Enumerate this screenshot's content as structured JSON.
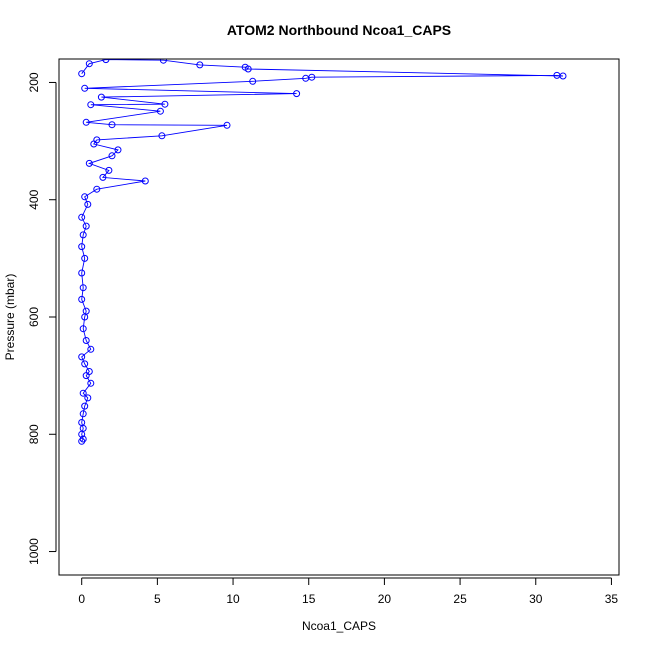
{
  "chart_data": {
    "type": "scatter",
    "title": "ATOM2 Northbound Ncoa1_CAPS",
    "xlabel": "Ncoa1_CAPS",
    "ylabel": "Pressure (mbar)",
    "xlim": [
      -1.5,
      35.5
    ],
    "ylim": [
      1040,
      160
    ],
    "y_reversed": true,
    "xticks": [
      0,
      5,
      10,
      15,
      20,
      25,
      30,
      35
    ],
    "yticks": [
      200,
      400,
      600,
      800,
      1000
    ],
    "grid": false,
    "legend": "none",
    "color": "#0000ff",
    "marker": "open-circle",
    "connected": true,
    "series": [
      {
        "points": [
          {
            "x": 0.0,
            "y": 812
          },
          {
            "x": 0.1,
            "y": 808
          },
          {
            "x": 0.0,
            "y": 800
          },
          {
            "x": 0.1,
            "y": 790
          },
          {
            "x": 0.0,
            "y": 780
          },
          {
            "x": 0.1,
            "y": 765
          },
          {
            "x": 0.2,
            "y": 752
          },
          {
            "x": 0.4,
            "y": 738
          },
          {
            "x": 0.1,
            "y": 730
          },
          {
            "x": 0.6,
            "y": 713
          },
          {
            "x": 0.3,
            "y": 700
          },
          {
            "x": 0.5,
            "y": 693
          },
          {
            "x": 0.2,
            "y": 680
          },
          {
            "x": 0.0,
            "y": 668
          },
          {
            "x": 0.6,
            "y": 655
          },
          {
            "x": 0.3,
            "y": 640
          },
          {
            "x": 0.1,
            "y": 620
          },
          {
            "x": 0.2,
            "y": 600
          },
          {
            "x": 0.3,
            "y": 590
          },
          {
            "x": 0.0,
            "y": 570
          },
          {
            "x": 0.1,
            "y": 550
          },
          {
            "x": 0.0,
            "y": 525
          },
          {
            "x": 0.2,
            "y": 500
          },
          {
            "x": 0.0,
            "y": 480
          },
          {
            "x": 0.1,
            "y": 460
          },
          {
            "x": 0.3,
            "y": 445
          },
          {
            "x": 0.0,
            "y": 430
          },
          {
            "x": 0.4,
            "y": 408
          },
          {
            "x": 0.2,
            "y": 395
          },
          {
            "x": 1.0,
            "y": 382
          },
          {
            "x": 4.2,
            "y": 368
          },
          {
            "x": 1.4,
            "y": 362
          },
          {
            "x": 1.8,
            "y": 350
          },
          {
            "x": 0.5,
            "y": 338
          },
          {
            "x": 2.0,
            "y": 325
          },
          {
            "x": 2.4,
            "y": 315
          },
          {
            "x": 0.8,
            "y": 305
          },
          {
            "x": 1.0,
            "y": 298
          },
          {
            "x": 5.3,
            "y": 291
          },
          {
            "x": 9.6,
            "y": 273
          },
          {
            "x": 2.0,
            "y": 272
          },
          {
            "x": 0.3,
            "y": 268
          },
          {
            "x": 5.2,
            "y": 249
          },
          {
            "x": 0.6,
            "y": 238
          },
          {
            "x": 5.5,
            "y": 237
          },
          {
            "x": 1.3,
            "y": 225
          },
          {
            "x": 14.2,
            "y": 219
          },
          {
            "x": 0.2,
            "y": 210
          },
          {
            "x": 11.3,
            "y": 198
          },
          {
            "x": 14.8,
            "y": 193
          },
          {
            "x": 15.2,
            "y": 191
          },
          {
            "x": 31.4,
            "y": 188
          },
          {
            "x": 31.8,
            "y": 189
          },
          {
            "x": 11.0,
            "y": 177
          },
          {
            "x": 10.8,
            "y": 174
          },
          {
            "x": 7.8,
            "y": 170
          },
          {
            "x": 5.4,
            "y": 162
          },
          {
            "x": 1.6,
            "y": 161
          },
          {
            "x": 0.5,
            "y": 168
          },
          {
            "x": 0.0,
            "y": 185
          }
        ]
      }
    ]
  }
}
